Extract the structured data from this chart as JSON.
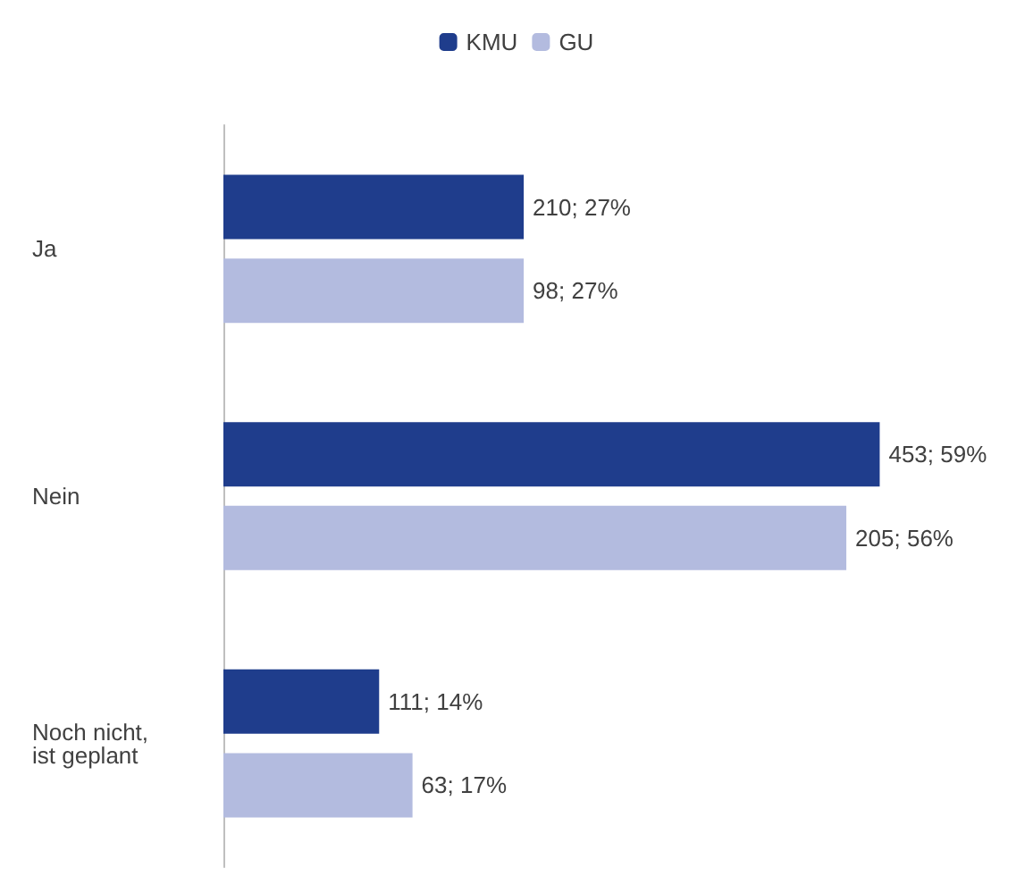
{
  "chart_data": {
    "type": "bar",
    "orientation": "horizontal",
    "categories": [
      "Ja",
      "Nein",
      "Noch nicht, ist geplant"
    ],
    "series": [
      {
        "name": "KMU",
        "color": "#1f3d8c",
        "values": [
          27,
          59,
          14
        ],
        "value_labels": [
          "210; 27%",
          "453; 59%",
          "111; 14%"
        ]
      },
      {
        "name": "GU",
        "color": "#b3bbdf",
        "values": [
          27,
          56,
          17
        ],
        "value_labels": [
          "98; 27%",
          "205; 56%",
          "63; 17%"
        ]
      }
    ],
    "legend": "top"
  }
}
